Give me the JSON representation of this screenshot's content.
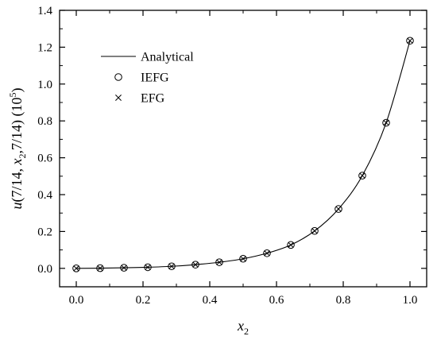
{
  "chart_data": {
    "type": "line",
    "xlabel": {
      "base": "x",
      "sub": "2"
    },
    "ylabel": {
      "parts": [
        {
          "t": "u",
          "style": "italic"
        },
        {
          "t": "(7/14, "
        },
        {
          "t": "x",
          "style": "italic"
        },
        {
          "t": "2",
          "style": "sub"
        },
        {
          "t": ",7/14) (10"
        },
        {
          "t": "5",
          "style": "sup"
        },
        {
          "t": ")"
        }
      ]
    },
    "xlim": [
      -0.05,
      1.05
    ],
    "ylim": [
      -0.1,
      1.4
    ],
    "xticks": [
      0.0,
      0.2,
      0.4,
      0.6,
      0.8,
      1.0
    ],
    "xtick_labels": [
      "0.0",
      "0.2",
      "0.4",
      "0.6",
      "0.8",
      "1.0"
    ],
    "yticks": [
      0.0,
      0.2,
      0.4,
      0.6,
      0.8,
      1.0,
      1.2,
      1.4
    ],
    "ytick_labels": [
      "0.0",
      "0.2",
      "0.4",
      "0.6",
      "0.8",
      "1.0",
      "1.2",
      "1.4"
    ],
    "legend_position": "top-left",
    "series": [
      {
        "name": "Analytical",
        "style": "line",
        "x": [
          0.0,
          0.0714,
          0.1429,
          0.2143,
          0.2857,
          0.3571,
          0.4286,
          0.5,
          0.5714,
          0.6429,
          0.7143,
          0.7857,
          0.8571,
          0.9286,
          1.0
        ],
        "y": [
          0.0,
          0.001,
          0.003,
          0.006,
          0.011,
          0.02,
          0.033,
          0.052,
          0.082,
          0.127,
          0.203,
          0.322,
          0.503,
          0.79,
          1.235
        ]
      },
      {
        "name": "IEFG",
        "style": "circle",
        "x": [
          0.0,
          0.0714,
          0.1429,
          0.2143,
          0.2857,
          0.3571,
          0.4286,
          0.5,
          0.5714,
          0.6429,
          0.7143,
          0.7857,
          0.8571,
          0.9286,
          1.0
        ],
        "y": [
          0.0,
          0.001,
          0.003,
          0.006,
          0.011,
          0.02,
          0.033,
          0.052,
          0.082,
          0.127,
          0.203,
          0.322,
          0.503,
          0.79,
          1.235
        ]
      },
      {
        "name": "EFG",
        "style": "cross",
        "x": [
          0.0,
          0.0714,
          0.1429,
          0.2143,
          0.2857,
          0.3571,
          0.4286,
          0.5,
          0.5714,
          0.6429,
          0.7143,
          0.7857,
          0.8571,
          0.9286,
          1.0
        ],
        "y": [
          0.0,
          0.001,
          0.003,
          0.006,
          0.011,
          0.02,
          0.033,
          0.052,
          0.082,
          0.127,
          0.203,
          0.322,
          0.503,
          0.79,
          1.235
        ]
      }
    ]
  }
}
